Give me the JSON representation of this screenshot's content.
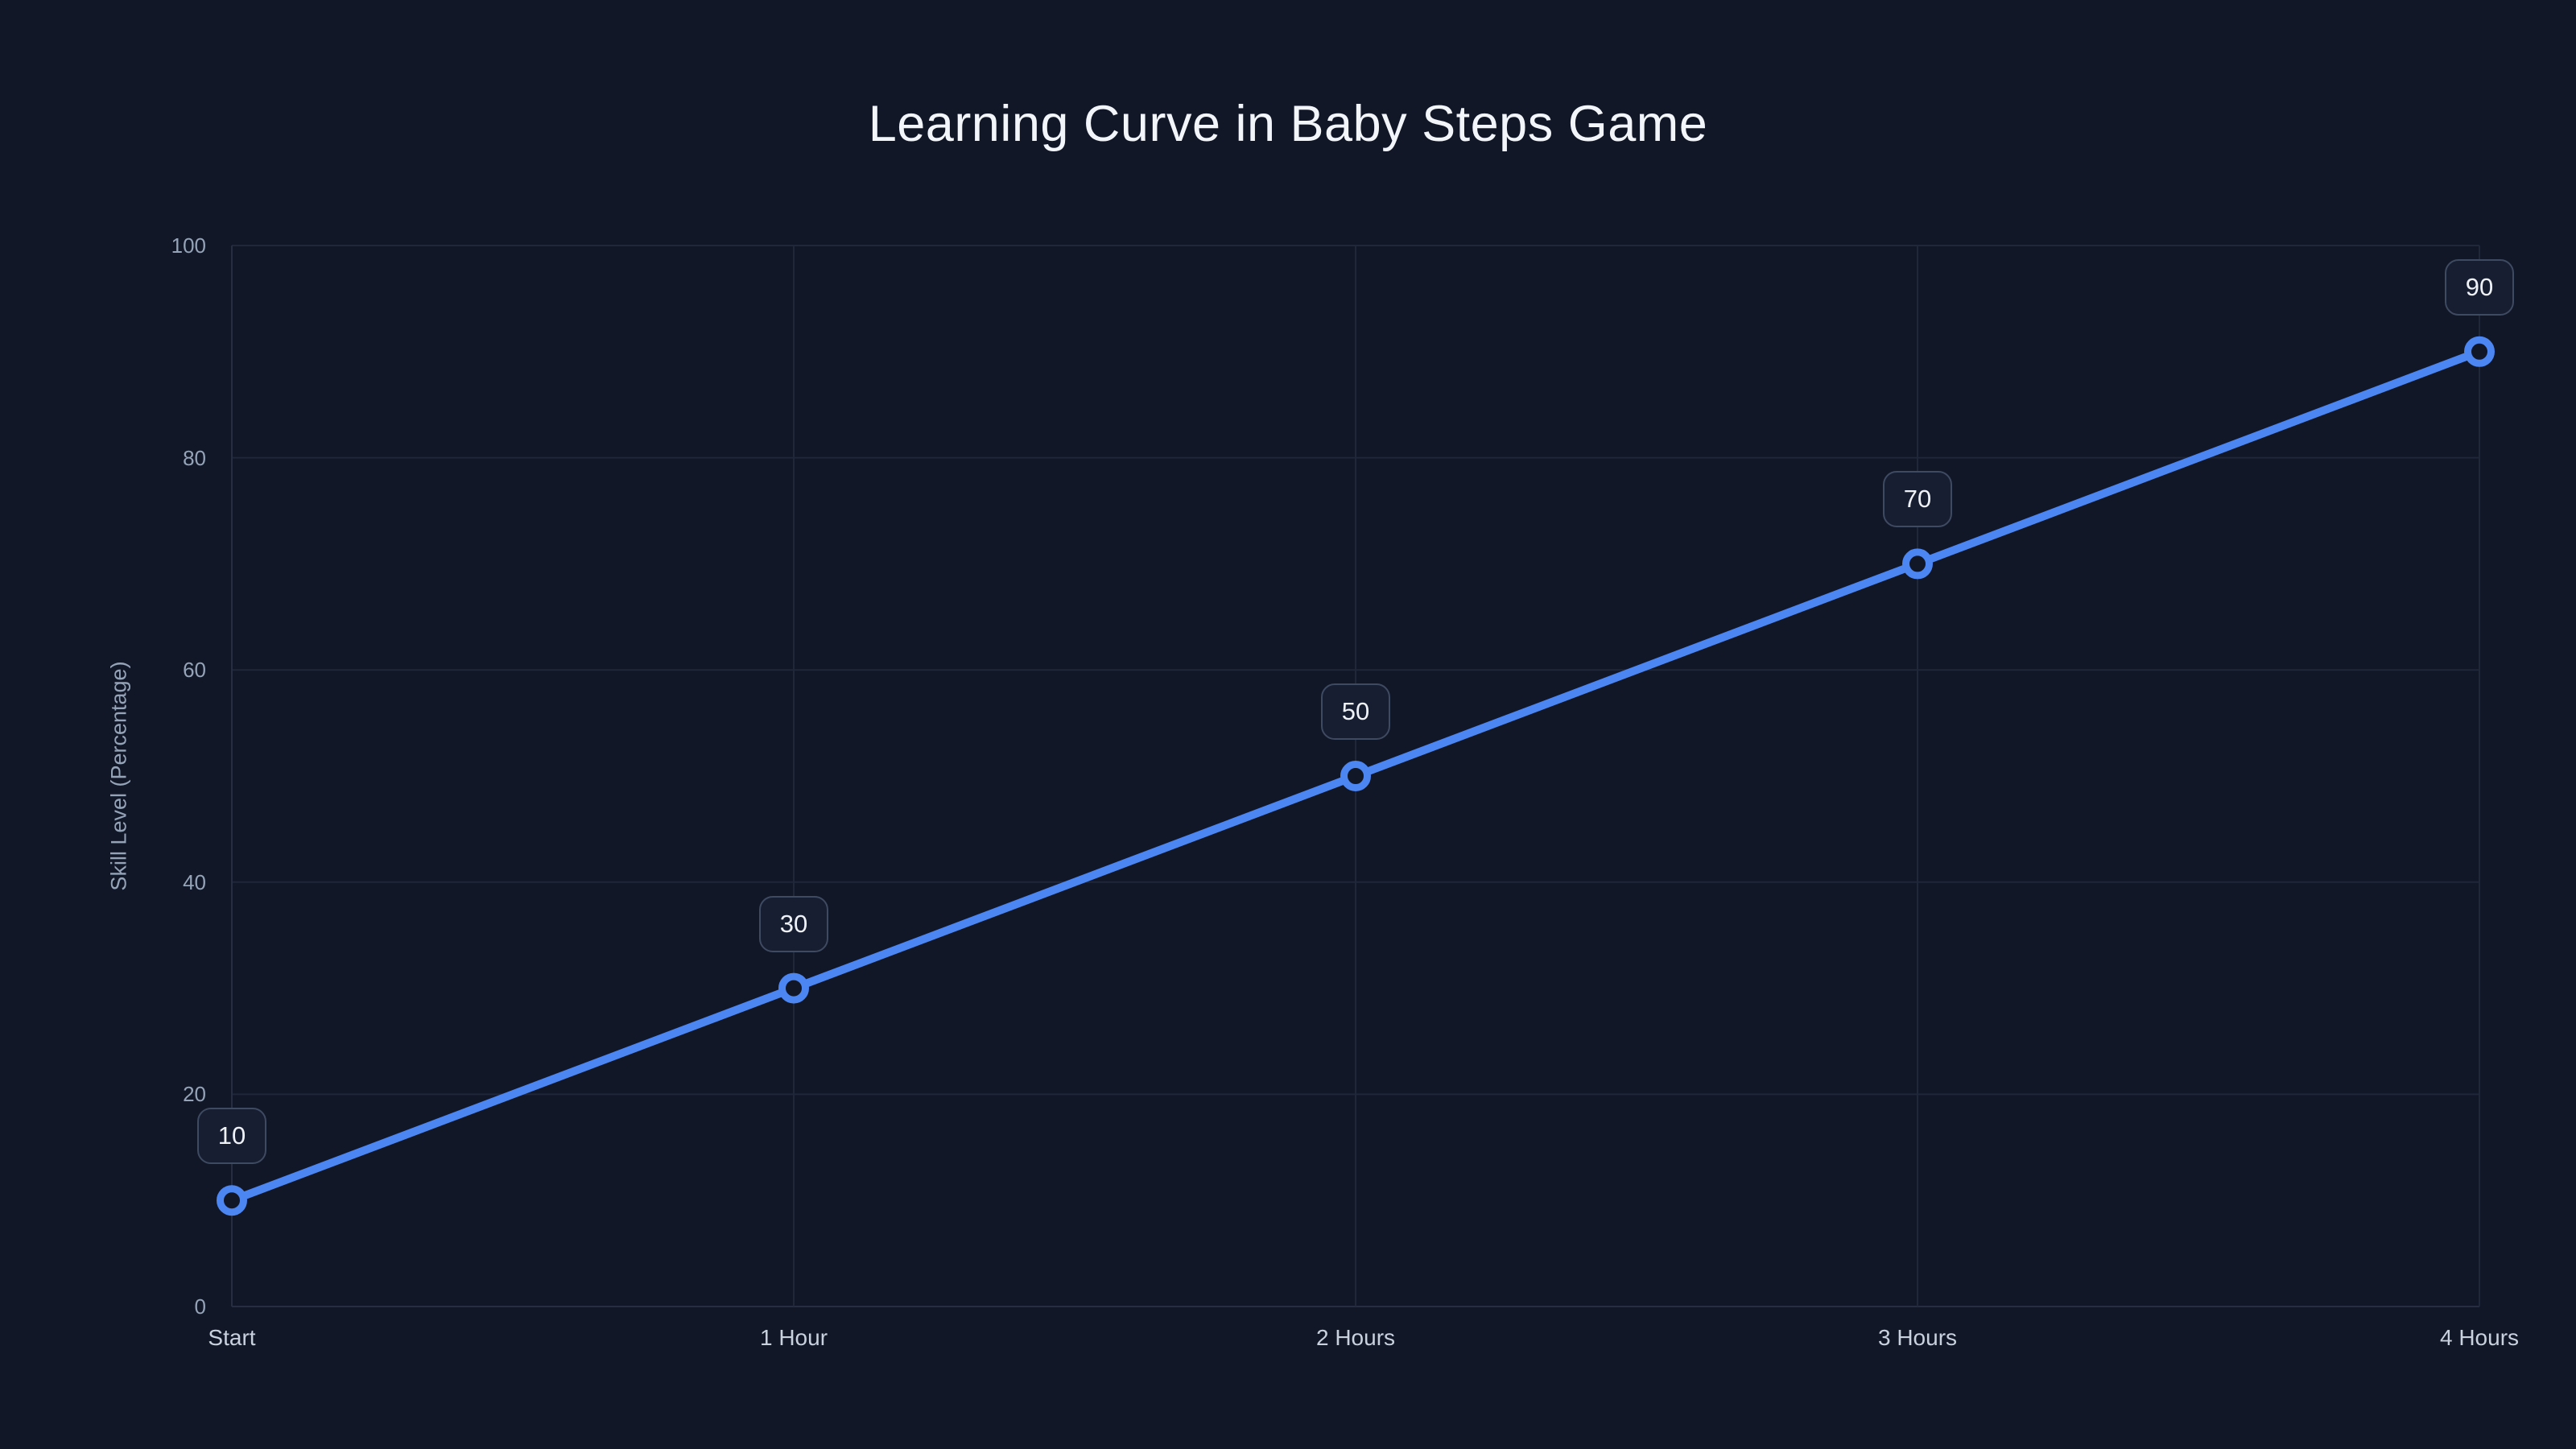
{
  "page": {
    "background_color": "#111727"
  },
  "chart_data": {
    "type": "line",
    "title": "Learning Curve in Baby Steps Game",
    "categories": [
      "Start",
      "1 Hour",
      "2 Hours",
      "3 Hours",
      "4 Hours"
    ],
    "values": [
      10,
      30,
      50,
      70,
      90
    ],
    "point_labels": [
      "10",
      "30",
      "50",
      "70",
      "90"
    ],
    "xlabel": "",
    "ylabel": "Skill Level (Percentage)",
    "ylim": [
      0,
      100
    ],
    "yticks": [
      0,
      20,
      40,
      60,
      80,
      100
    ],
    "grid": true,
    "legend": false,
    "colors": {
      "background": "#111727",
      "line": "#4b86f2",
      "marker_ring": "#4b86f2",
      "marker_fill": "#111727",
      "gridline": "#1f2738",
      "axis_line": "#262e42",
      "tick_text": "#94a3b8",
      "x_label_text": "#c9d1df",
      "ylabel_text": "#94a3b8",
      "title_text": "#f2f5f9",
      "label_box_border": "#3e4a61",
      "label_box_bg": "#171e31",
      "label_box_text": "#eef2f7"
    }
  }
}
